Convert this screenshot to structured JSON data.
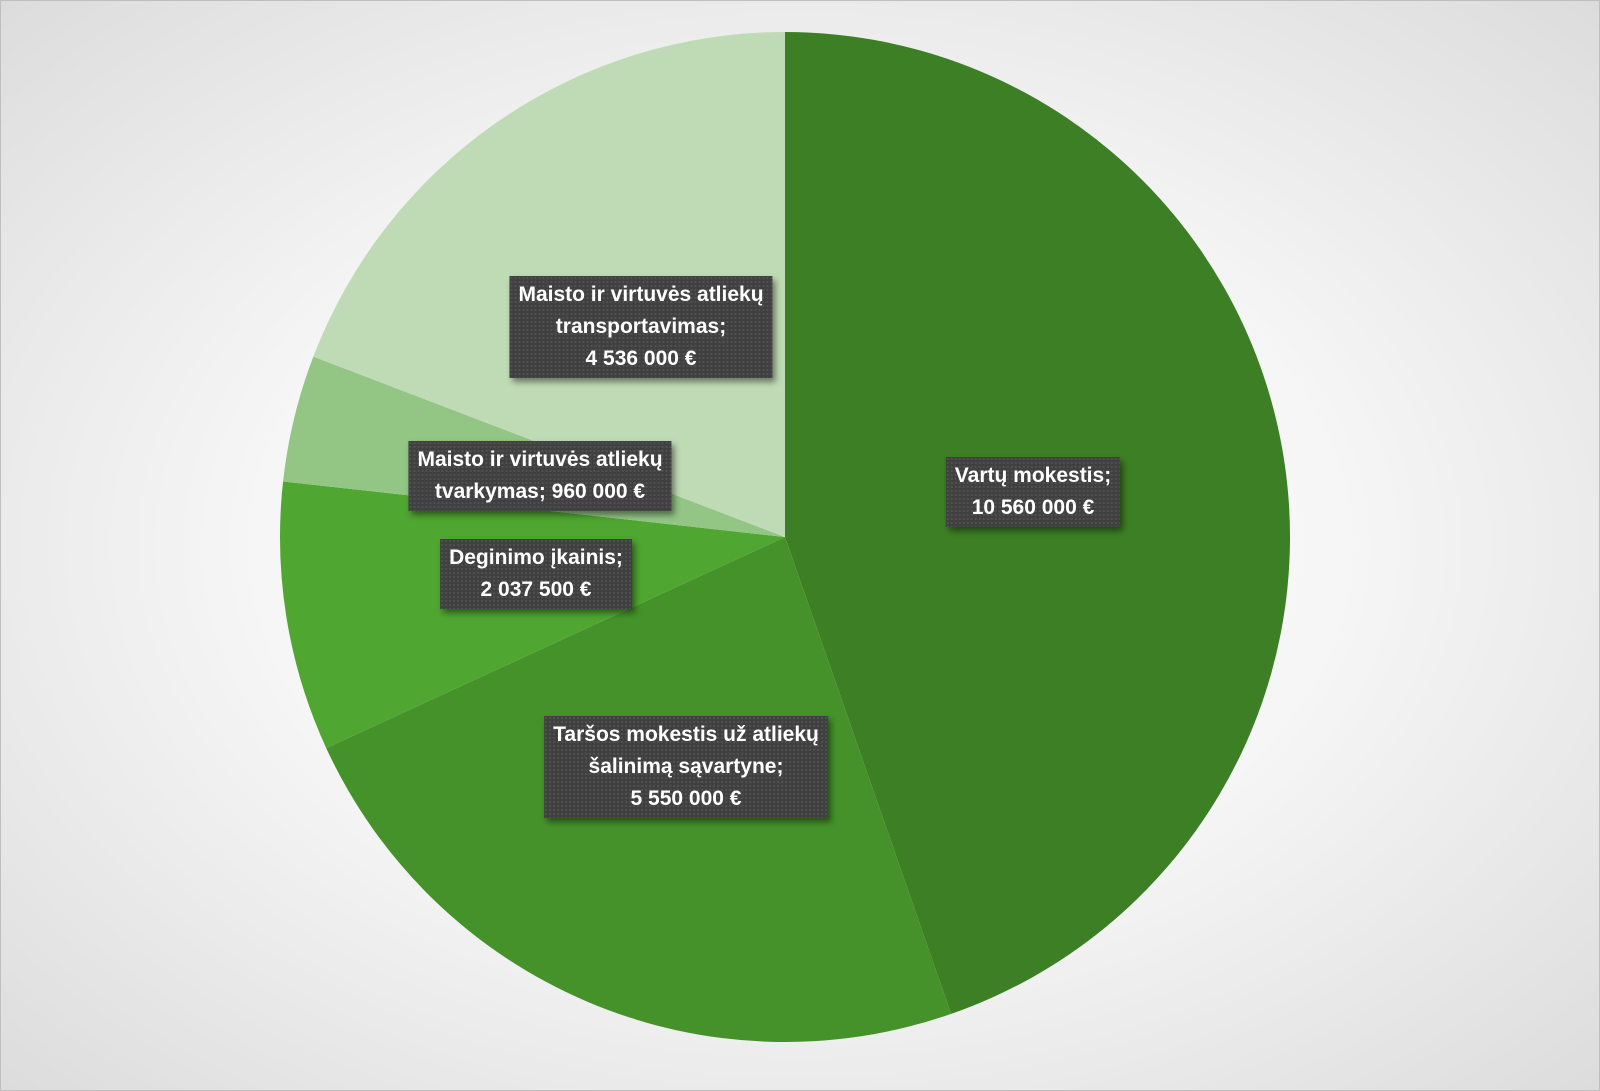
{
  "chart_data": {
    "type": "pie",
    "slices": [
      {
        "category": "Vartų mokestis",
        "value": 10560000,
        "label_lines": [
          "Vartų mokestis;",
          "10 560 000 €"
        ],
        "color": "#3d7f24"
      },
      {
        "category": "Taršos mokestis už atliekų šalinimą sąvartyne",
        "value": 5550000,
        "label_lines": [
          "Taršos mokestis už atliekų",
          "šalinimą sąvartyne;",
          "5 550 000 €"
        ],
        "color": "#45922a"
      },
      {
        "category": "Deginimo įkainis",
        "value": 2037500,
        "label_lines": [
          "Deginimo įkainis;",
          "2 037 500 €"
        ],
        "color": "#4fa630"
      },
      {
        "category": "Maisto ir virtuvės atliekų tvarkymas",
        "value": 960000,
        "label_lines": [
          "Maisto ir virtuvės atliekų",
          "tvarkymas; 960 000 €"
        ],
        "color": "#93c585"
      },
      {
        "category": "Maisto ir virtuvės atliekų transportavimas",
        "value": 4536000,
        "label_lines": [
          "Maisto ir virtuvės atliekų",
          "transportavimas;",
          "4 536 000 €"
        ],
        "color": "#bfdbb5"
      }
    ],
    "start_angle": "12 o'clock",
    "direction": "clockwise",
    "legend": "none",
    "data_labels": "category; value"
  }
}
